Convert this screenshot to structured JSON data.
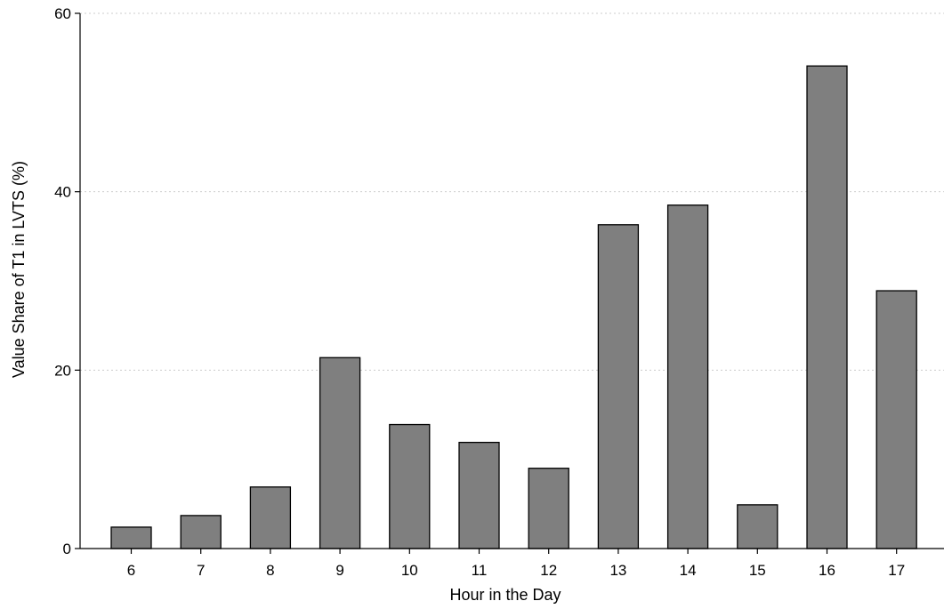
{
  "chart_data": {
    "type": "bar",
    "title": "",
    "xlabel": "Hour in the Day",
    "ylabel": "Value Share of T1 in LVTS (%)",
    "categories": [
      "6",
      "7",
      "8",
      "9",
      "10",
      "11",
      "12",
      "13",
      "14",
      "15",
      "16",
      "17"
    ],
    "values": [
      2.4,
      3.7,
      6.9,
      21.4,
      13.9,
      11.9,
      9.0,
      36.3,
      38.5,
      4.9,
      54.1,
      28.9
    ],
    "ylim": [
      0,
      60
    ],
    "yticks": [
      0,
      20,
      40,
      60
    ],
    "grid": "horizontal dotted",
    "legend": "none",
    "bar_color": "#7f7f7f",
    "bar_edge_color": "#000000",
    "grid_color": "#cccccc"
  }
}
